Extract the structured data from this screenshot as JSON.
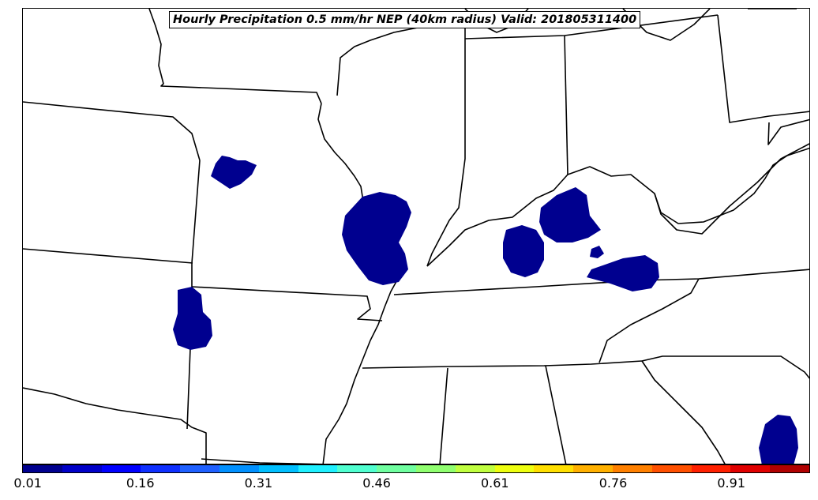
{
  "title": "Hourly Precipitation 0.5 mm/hr NEP (40km radius) Valid: 201805311400",
  "map_kind": "NEP probability shading over US state boundaries",
  "probability_fill_color": "#00008f",
  "colorbar": {
    "colors": [
      "#00008f",
      "#0000c8",
      "#0000ff",
      "#0f30ff",
      "#1f60ff",
      "#0090ff",
      "#00bfff",
      "#1ff0ff",
      "#50ffd0",
      "#70ffa0",
      "#90ff70",
      "#c0ff40",
      "#eeff10",
      "#ffdf00",
      "#ffb000",
      "#ff8000",
      "#ff5000",
      "#ff2000",
      "#e00000",
      "#b00000"
    ],
    "ticks": [
      "0.01",
      "0.16",
      "0.31",
      "0.46",
      "0.61",
      "0.76",
      "0.91"
    ]
  }
}
